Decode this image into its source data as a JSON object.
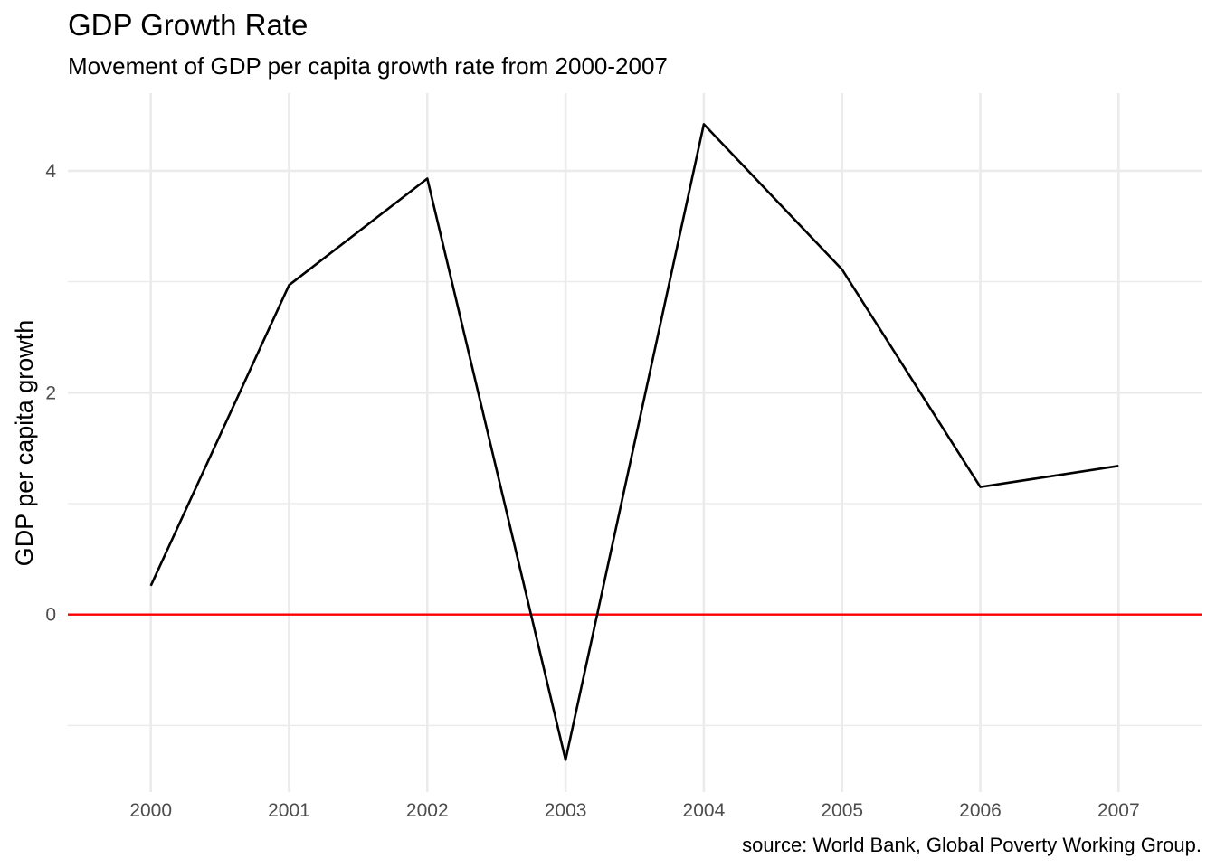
{
  "chart_data": {
    "type": "line",
    "title": "GDP Growth Rate",
    "subtitle": "Movement of GDP per capita growth rate from 2000-2007",
    "caption": "source: World Bank, Global Poverty Working Group.",
    "xlabel": "",
    "ylabel": "GDP per capita growth",
    "x": [
      2000,
      2001,
      2002,
      2003,
      2004,
      2005,
      2006,
      2007
    ],
    "x_tick_labels": [
      "2000",
      "2001",
      "2002",
      "2003",
      "2004",
      "2005",
      "2006",
      "2007"
    ],
    "series": [
      {
        "values": [
          0.26,
          2.97,
          3.93,
          -1.31,
          4.42,
          3.11,
          1.15,
          1.34
        ],
        "color": "#000000"
      }
    ],
    "reference_line": {
      "y": 0,
      "color": "#ff0000"
    },
    "y_ticks": [
      0,
      2,
      4
    ],
    "y_tick_labels": [
      "0",
      "2",
      "4"
    ],
    "y_minor_ticks": [
      -1,
      1,
      3
    ],
    "xlim": [
      1999.4,
      2007.6
    ],
    "ylim": [
      -1.6,
      4.7
    ],
    "grid": true,
    "legend": "none"
  }
}
